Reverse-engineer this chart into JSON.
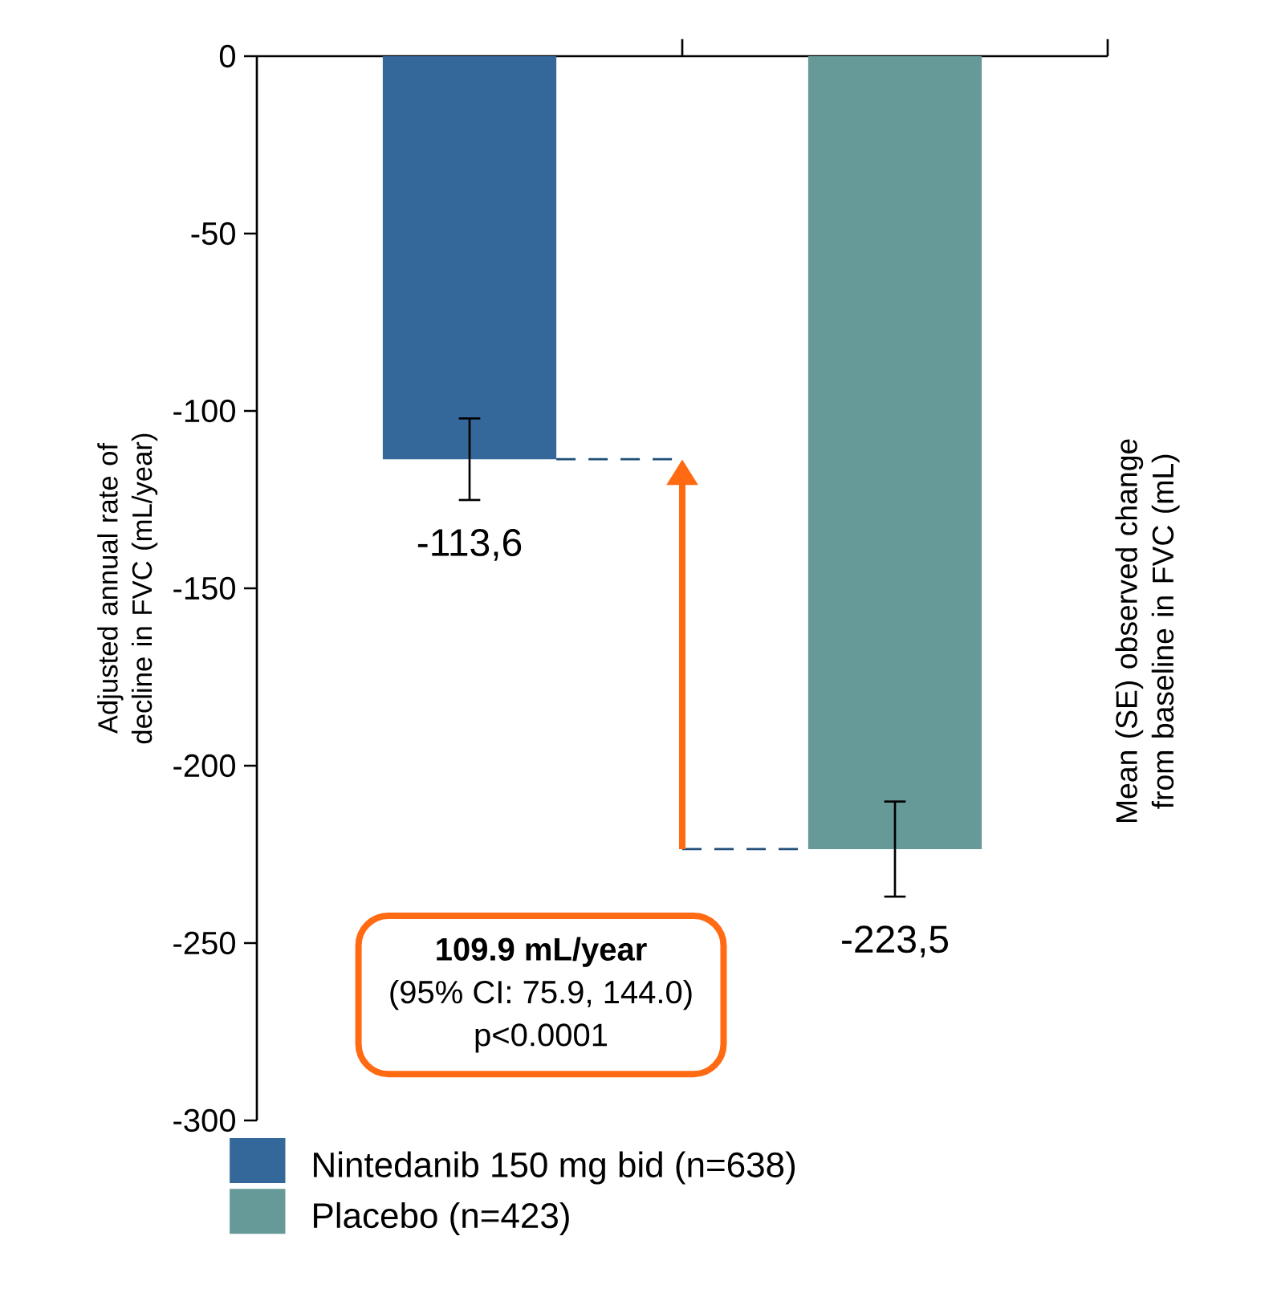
{
  "chart_data": {
    "type": "bar",
    "categories": [
      null,
      null
    ],
    "series": [
      {
        "name": "Nintedanib 150 mg bid (n=638)",
        "color": "#34679a",
        "values": [
          -113.6,
          null
        ],
        "errors": [
          11.5,
          null
        ],
        "value_labels": [
          "-113,6",
          null
        ]
      },
      {
        "name": "Placebo (n=423)",
        "color": "#669a99",
        "values": [
          null,
          -223.5
        ],
        "errors": [
          null,
          13.4
        ],
        "value_labels": [
          null,
          "-223,5"
        ]
      }
    ],
    "ylabel": "Adjusted annual rate of decline in FVC (mL/year)",
    "y2label": "Mean (SE) observed change from baseline in FVC (mL)",
    "ylim": [
      -300,
      0
    ],
    "yticks": [
      -300,
      -250,
      -200,
      -150,
      -100,
      -50,
      0
    ],
    "annotations": [
      "109.9 mL/year",
      "(95% CI: 75.9, 144.0)",
      "p<0.0001"
    ],
    "legend": "bottom",
    "grid": false
  }
}
